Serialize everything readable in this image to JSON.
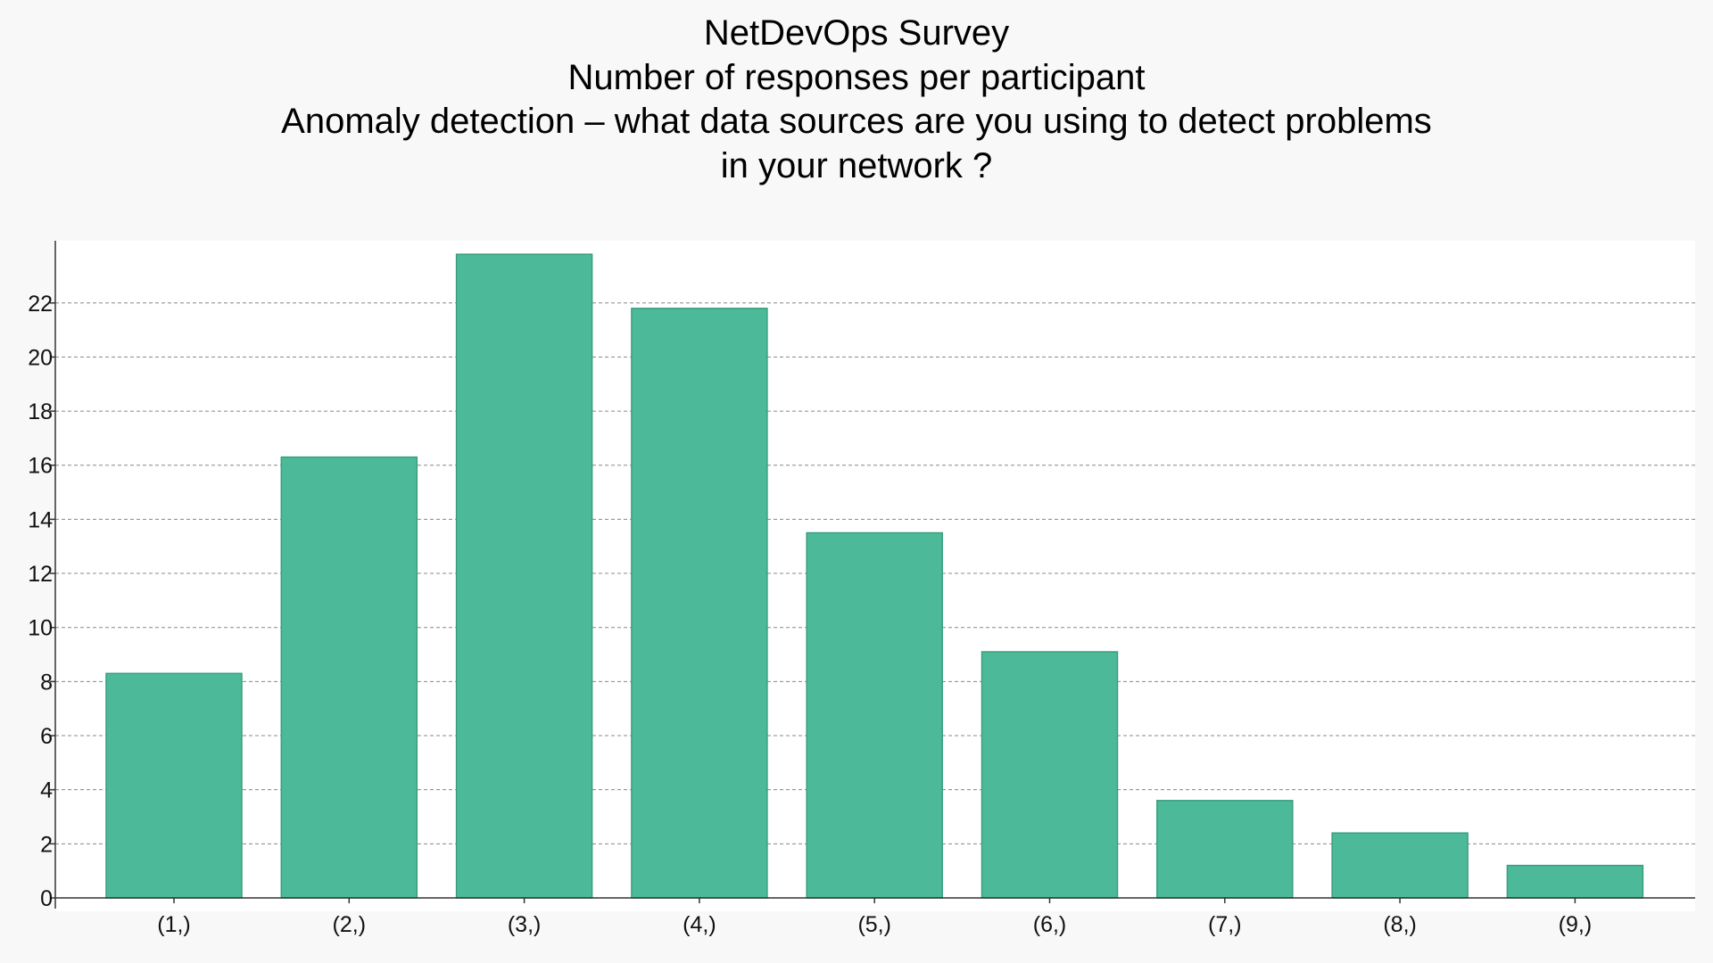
{
  "colors": {
    "background": "#f8f8f8",
    "plot_background": "#ffffff",
    "bar_fill": "#4cba98",
    "bar_stroke": "#3a9e7e",
    "grid": "#888888",
    "axis": "#333333"
  },
  "chart_data": {
    "type": "bar",
    "title_lines": [
      "NetDevOps Survey",
      "Number of responses per participant",
      "Anomaly detection – what data sources are you using to detect problems",
      "in your network ?"
    ],
    "xlabel": "",
    "ylabel": "",
    "categories": [
      "(1,)",
      "(2,)",
      "(3,)",
      "(4,)",
      "(5,)",
      "(6,)",
      "(7,)",
      "(8,)",
      "(9,)"
    ],
    "values": [
      8.3,
      16.3,
      23.8,
      21.8,
      13.5,
      9.1,
      3.6,
      2.4,
      1.2
    ],
    "ylim": [
      0,
      24.3
    ],
    "yticks": [
      0,
      2,
      4,
      6,
      8,
      10,
      12,
      14,
      16,
      18,
      20,
      22
    ],
    "grid": true,
    "grid_style": "dashed"
  }
}
